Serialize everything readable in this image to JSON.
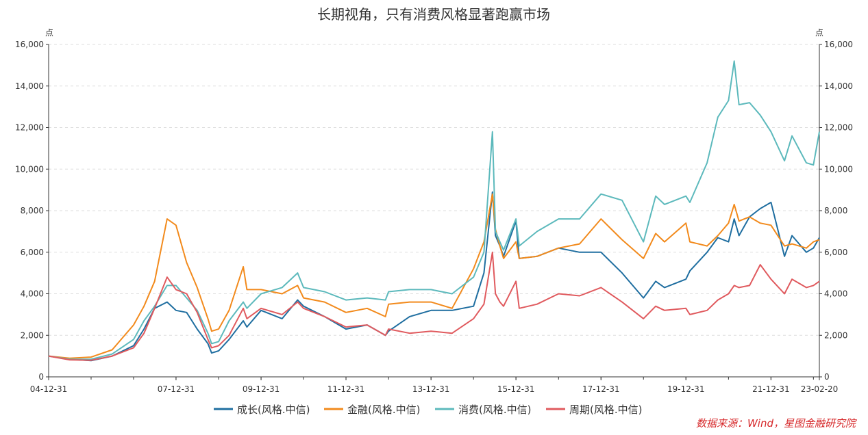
{
  "chart_data": {
    "type": "line",
    "title": "长期视角，只有消费风格显著跑赢市场",
    "ylabel_left": "点",
    "ylabel_right": "点",
    "source": "数据来源：Wind，星图金融研究院",
    "ylim": [
      0,
      16000
    ],
    "yticks": [
      0,
      2000,
      4000,
      6000,
      8000,
      10000,
      12000,
      14000,
      16000
    ],
    "ytick_labels": [
      "0",
      "2,000",
      "4,000",
      "6,000",
      "8,000",
      "10,000",
      "12,000",
      "14,000",
      "16,000"
    ],
    "xlim": [
      "2004-12-31",
      "2023-02-20"
    ],
    "xticks": [
      "2004-12-31",
      "2007-12-31",
      "2009-12-31",
      "2011-12-31",
      "2013-12-31",
      "2015-12-31",
      "2017-12-31",
      "2019-12-31",
      "2021-12-31",
      "2023-02-20"
    ],
    "xtick_labels": [
      "04-12-31",
      "07-12-31",
      "09-12-31",
      "11-12-31",
      "13-12-31",
      "15-12-31",
      "17-12-31",
      "19-12-31",
      "21-12-31",
      "23-02-20"
    ],
    "grid": "horizontal-dashed",
    "legend_position": "bottom",
    "colors": {
      "axis": "#333333",
      "grid": "#dddddd"
    },
    "x": [
      "2004-12-31",
      "2005-06-30",
      "2005-12-31",
      "2006-06-30",
      "2006-12-31",
      "2007-03-31",
      "2007-06-30",
      "2007-10-15",
      "2007-12-31",
      "2008-03-31",
      "2008-06-30",
      "2008-09-30",
      "2008-11-01",
      "2008-12-31",
      "2009-03-31",
      "2009-07-31",
      "2009-08-31",
      "2009-12-31",
      "2010-06-30",
      "2010-11-10",
      "2010-12-31",
      "2011-06-30",
      "2011-12-31",
      "2012-06-30",
      "2012-12-04",
      "2012-12-31",
      "2013-06-30",
      "2013-12-31",
      "2014-06-30",
      "2014-12-31",
      "2015-03-31",
      "2015-06-12",
      "2015-07-08",
      "2015-08-15",
      "2015-09-15",
      "2015-12-31",
      "2016-01-28",
      "2016-06-30",
      "2016-12-31",
      "2017-06-30",
      "2017-12-31",
      "2018-06-30",
      "2018-12-31",
      "2019-04-15",
      "2019-06-30",
      "2019-12-31",
      "2020-02-03",
      "2020-06-30",
      "2020-09-30",
      "2020-12-31",
      "2021-02-18",
      "2021-03-31",
      "2021-06-30",
      "2021-09-30",
      "2021-12-31",
      "2022-04-26",
      "2022-06-30",
      "2022-10-31",
      "2022-12-31",
      "2023-02-20"
    ],
    "series": [
      {
        "name": "成长(风格.中信)",
        "color": "#1f6ea0",
        "values": [
          1000,
          850,
          780,
          1000,
          1500,
          2300,
          3300,
          3600,
          3200,
          3100,
          2300,
          1600,
          1150,
          1250,
          1800,
          2700,
          2400,
          3200,
          2800,
          3700,
          3400,
          2900,
          2300,
          2500,
          2000,
          2200,
          2900,
          3200,
          3200,
          3400,
          5000,
          8900,
          6800,
          6300,
          5800,
          7500,
          5700,
          5800,
          6200,
          6000,
          6000,
          5000,
          3800,
          4600,
          4300,
          4700,
          5100,
          6000,
          6700,
          6500,
          7600,
          6800,
          7700,
          8100,
          8400,
          5800,
          6800,
          6000,
          6200,
          6700
        ]
      },
      {
        "name": "金融(风格.中信)",
        "color": "#f28a1c",
        "values": [
          1000,
          900,
          950,
          1300,
          2500,
          3400,
          4600,
          7600,
          7300,
          5500,
          4300,
          2800,
          2200,
          2300,
          3200,
          5300,
          4200,
          4200,
          4000,
          4400,
          3800,
          3600,
          3100,
          3300,
          2900,
          3500,
          3600,
          3600,
          3300,
          5200,
          6500,
          8800,
          7100,
          6300,
          5700,
          6500,
          5700,
          5800,
          6200,
          6400,
          7600,
          6600,
          5700,
          6900,
          6500,
          7400,
          6500,
          6300,
          6800,
          7400,
          8300,
          7500,
          7700,
          7400,
          7300,
          6300,
          6400,
          6200,
          6500,
          6600
        ]
      },
      {
        "name": "消费(风格.中信)",
        "color": "#5cb9bc",
        "values": [
          1000,
          850,
          850,
          1100,
          1800,
          2700,
          3400,
          4400,
          4400,
          3800,
          3200,
          2100,
          1600,
          1700,
          2700,
          3600,
          3300,
          4000,
          4300,
          5000,
          4300,
          4100,
          3700,
          3800,
          3700,
          4100,
          4200,
          4200,
          4000,
          4800,
          6000,
          11800,
          7000,
          6500,
          6100,
          7600,
          6300,
          7000,
          7600,
          7600,
          8800,
          8500,
          6500,
          8700,
          8300,
          8700,
          8400,
          10300,
          12500,
          13300,
          15200,
          13100,
          13200,
          12600,
          11800,
          10400,
          11600,
          10300,
          10200,
          11800
        ]
      },
      {
        "name": "周期(风格.中信)",
        "color": "#e05a5e",
        "values": [
          1000,
          820,
          800,
          1000,
          1400,
          2100,
          3300,
          4800,
          4200,
          4000,
          3100,
          1800,
          1400,
          1500,
          2000,
          3300,
          2800,
          3300,
          3000,
          3600,
          3300,
          2900,
          2400,
          2500,
          2000,
          2300,
          2100,
          2200,
          2100,
          2800,
          3500,
          6000,
          4000,
          3600,
          3400,
          4600,
          3300,
          3500,
          4000,
          3900,
          4300,
          3600,
          2800,
          3400,
          3200,
          3300,
          3000,
          3200,
          3700,
          4000,
          4400,
          4300,
          4400,
          5400,
          4700,
          4000,
          4700,
          4300,
          4400,
          4600
        ]
      }
    ]
  }
}
